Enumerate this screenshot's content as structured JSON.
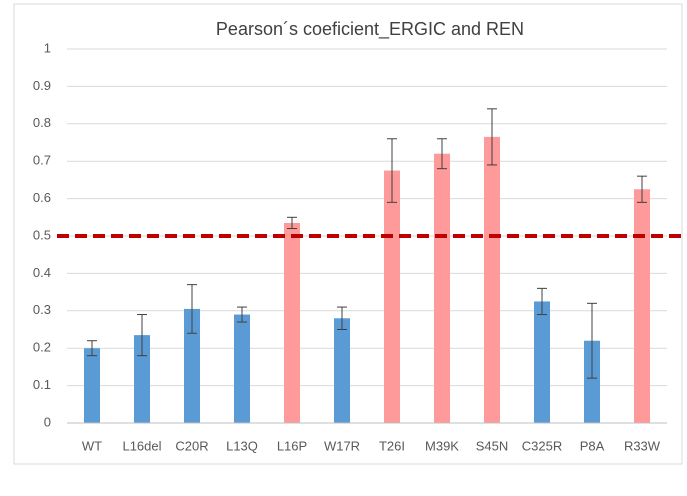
{
  "chart_data": {
    "type": "bar",
    "title": "Pearson´s coeficient_ERGIC and REN",
    "categories": [
      "WT",
      "L16del",
      "C20R",
      "L13Q",
      "L16P",
      "W17R",
      "T26I",
      "M39K",
      "S45N",
      "C325R",
      "P8A",
      "R33W"
    ],
    "values": [
      0.2,
      0.235,
      0.305,
      0.29,
      0.535,
      0.28,
      0.675,
      0.72,
      0.765,
      0.325,
      0.22,
      0.625
    ],
    "errors": [
      0.02,
      0.055,
      0.065,
      0.02,
      0.015,
      0.03,
      0.085,
      0.04,
      0.075,
      0.035,
      0.1,
      0.035
    ],
    "colors": [
      "#5b9bd5",
      "#5b9bd5",
      "#5b9bd5",
      "#5b9bd5",
      "#ff9a9a",
      "#5b9bd5",
      "#ff9a9a",
      "#ff9a9a",
      "#ff9a9a",
      "#5b9bd5",
      "#5b9bd5",
      "#ff9a9a"
    ],
    "ylim": [
      0,
      1
    ],
    "yticks": [
      0,
      0.1,
      0.2,
      0.3,
      0.4,
      0.5,
      0.6,
      0.7,
      0.8,
      0.9,
      1
    ],
    "grid": true,
    "reference_line": {
      "value": 0.5,
      "color": "#c00000"
    }
  }
}
